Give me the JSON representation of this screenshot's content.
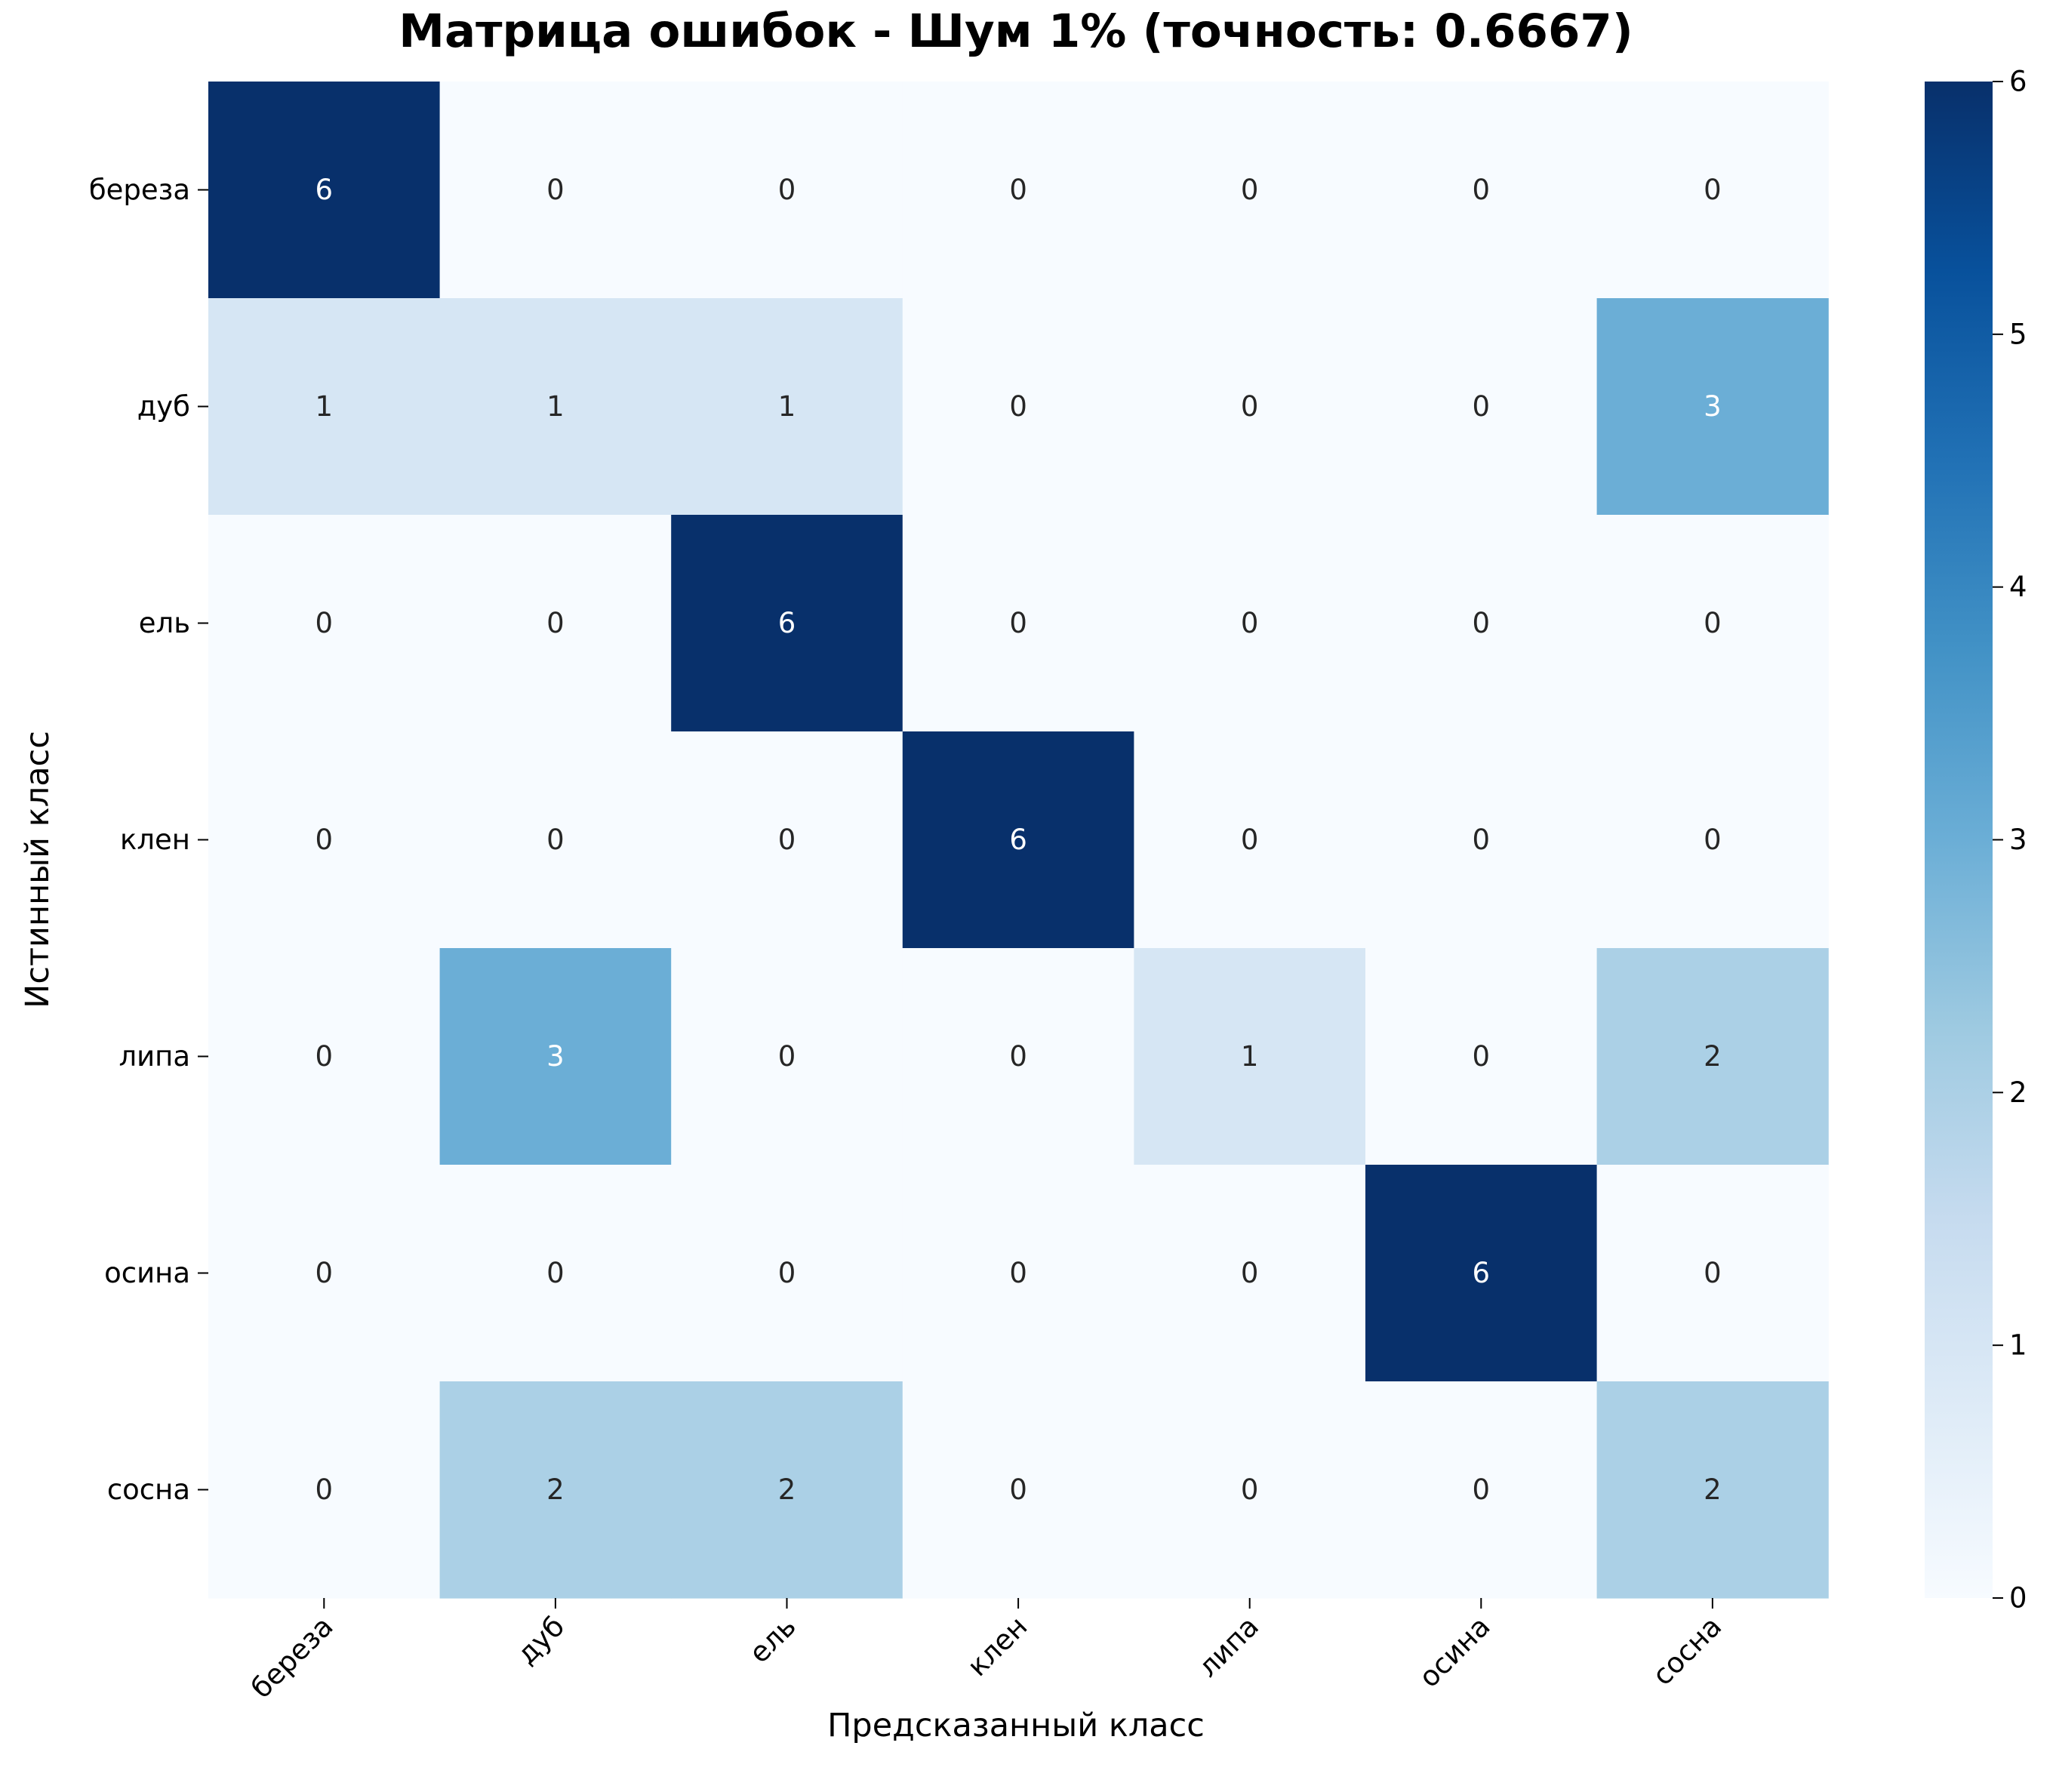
{
  "chart_data": {
    "type": "heatmap",
    "title": "Матрица ошибок - Шум 1% (точность: 0.6667)",
    "xlabel": "Предсказанный класс",
    "ylabel": "Истинный класс",
    "x_categories": [
      "береза",
      "дуб",
      "ель",
      "клен",
      "липа",
      "осина",
      "сосна"
    ],
    "y_categories": [
      "береза",
      "дуб",
      "ель",
      "клен",
      "липа",
      "осина",
      "сосна"
    ],
    "values": [
      [
        6,
        0,
        0,
        0,
        0,
        0,
        0
      ],
      [
        1,
        1,
        1,
        0,
        0,
        0,
        3
      ],
      [
        0,
        0,
        6,
        0,
        0,
        0,
        0
      ],
      [
        0,
        0,
        0,
        6,
        0,
        0,
        0
      ],
      [
        0,
        3,
        0,
        0,
        1,
        0,
        2
      ],
      [
        0,
        0,
        0,
        0,
        0,
        6,
        0
      ],
      [
        0,
        2,
        2,
        0,
        0,
        0,
        2
      ]
    ],
    "colorbar": {
      "min": 0,
      "max": 6,
      "ticks": [
        0,
        1,
        2,
        3,
        4,
        5,
        6
      ]
    },
    "colormap": "Blues",
    "colors": {
      "light_text": "#ffffff",
      "dark_text": "#262626"
    },
    "x_tick_rotation_deg": 45
  }
}
